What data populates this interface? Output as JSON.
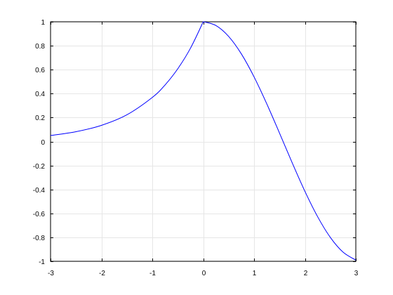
{
  "chart_data": {
    "type": "line",
    "title": "",
    "xlabel": "",
    "ylabel": "",
    "xlim": [
      -3,
      3
    ],
    "ylim": [
      -1,
      1
    ],
    "grid": true,
    "x_ticks": [
      -3,
      -2,
      -1,
      0,
      1,
      2,
      3
    ],
    "y_ticks": [
      -1,
      -0.8,
      -0.6,
      -0.4,
      -0.2,
      0,
      0.2,
      0.4,
      0.6,
      0.8,
      1
    ],
    "x_tick_labels": [
      "-3",
      "-2",
      "-1",
      "0",
      "1",
      "2",
      "3"
    ],
    "y_tick_labels": [
      "-1",
      "-0.8",
      "-0.6",
      "-0.4",
      "-0.2",
      "0",
      "0.2",
      "0.4",
      "0.6",
      "0.8",
      "1"
    ],
    "series": [
      {
        "color": "#0000ff",
        "x": [
          -3,
          -2.5,
          -2,
          -1.5,
          -1,
          -0.75,
          -0.5,
          -0.25,
          0,
          0.25,
          0.5,
          0.75,
          1,
          1.25,
          1.5,
          1.75,
          2,
          2.25,
          2.5,
          2.75,
          3
        ],
        "y": [
          0.05,
          0.082,
          0.135,
          0.223,
          0.368,
          0.472,
          0.607,
          0.779,
          1.0,
          0.969,
          0.878,
          0.732,
          0.54,
          0.315,
          0.071,
          -0.178,
          -0.416,
          -0.628,
          -0.801,
          -0.924,
          -0.99
        ]
      }
    ]
  }
}
